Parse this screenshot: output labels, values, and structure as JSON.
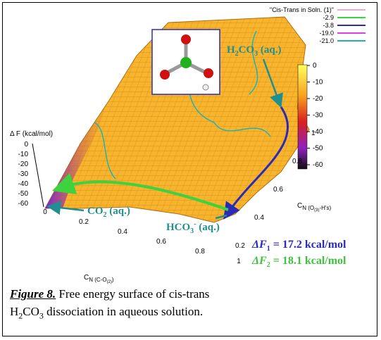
{
  "figure": {
    "legend": [
      {
        "label": "\"Cis-Trans in Soln. (1)\"",
        "color": "#f4a6cf"
      },
      {
        "label": "-2.9",
        "color": "#3fd23f"
      },
      {
        "label": "-3.8",
        "color": "#2b2bb8"
      },
      {
        "label": "-19.0",
        "color": "#e23fe2"
      },
      {
        "label": "-21.0",
        "color": "#1fb3b3"
      }
    ],
    "colorbar_ticks": [
      "0",
      "-10",
      "-20",
      "-30",
      "-40",
      "-50",
      "-60"
    ],
    "z_axis": {
      "label": "Δ F (kcal/mol)",
      "ticks": [
        "0",
        "-10",
        "-20",
        "-30",
        "-40",
        "-50",
        "-60"
      ]
    },
    "x_axis": {
      "label": [
        "C",
        "N (C-O",
        "(2)",
        ")"
      ],
      "ticks": [
        "0",
        "0.2",
        "0.4",
        "0.6",
        "0.8",
        "1"
      ]
    },
    "y_axis": {
      "label": [
        "C",
        "N (O",
        "(3)",
        "-H's)"
      ],
      "ticks": [
        "0.2",
        "0.4",
        "0.6",
        "0.8",
        "1"
      ]
    },
    "annotations": {
      "h2co3": [
        "H",
        "2",
        "CO",
        "3",
        " (aq.)"
      ],
      "co2": [
        "CO",
        "2",
        " (aq.)"
      ],
      "hco3": [
        "HCO",
        "3",
        "-",
        " (aq.)"
      ],
      "df1": [
        "ΔF",
        "1",
        " = 17.2 kcal/mol"
      ],
      "df2": [
        "ΔF",
        "2",
        " = 18.1 kcal/mol"
      ]
    },
    "caption": {
      "label": "Figure 8.",
      "parts": [
        " Free energy surface of cis-trans",
        "H",
        "2",
        "CO",
        "3",
        " dissociation in aqueous solution."
      ]
    }
  }
}
